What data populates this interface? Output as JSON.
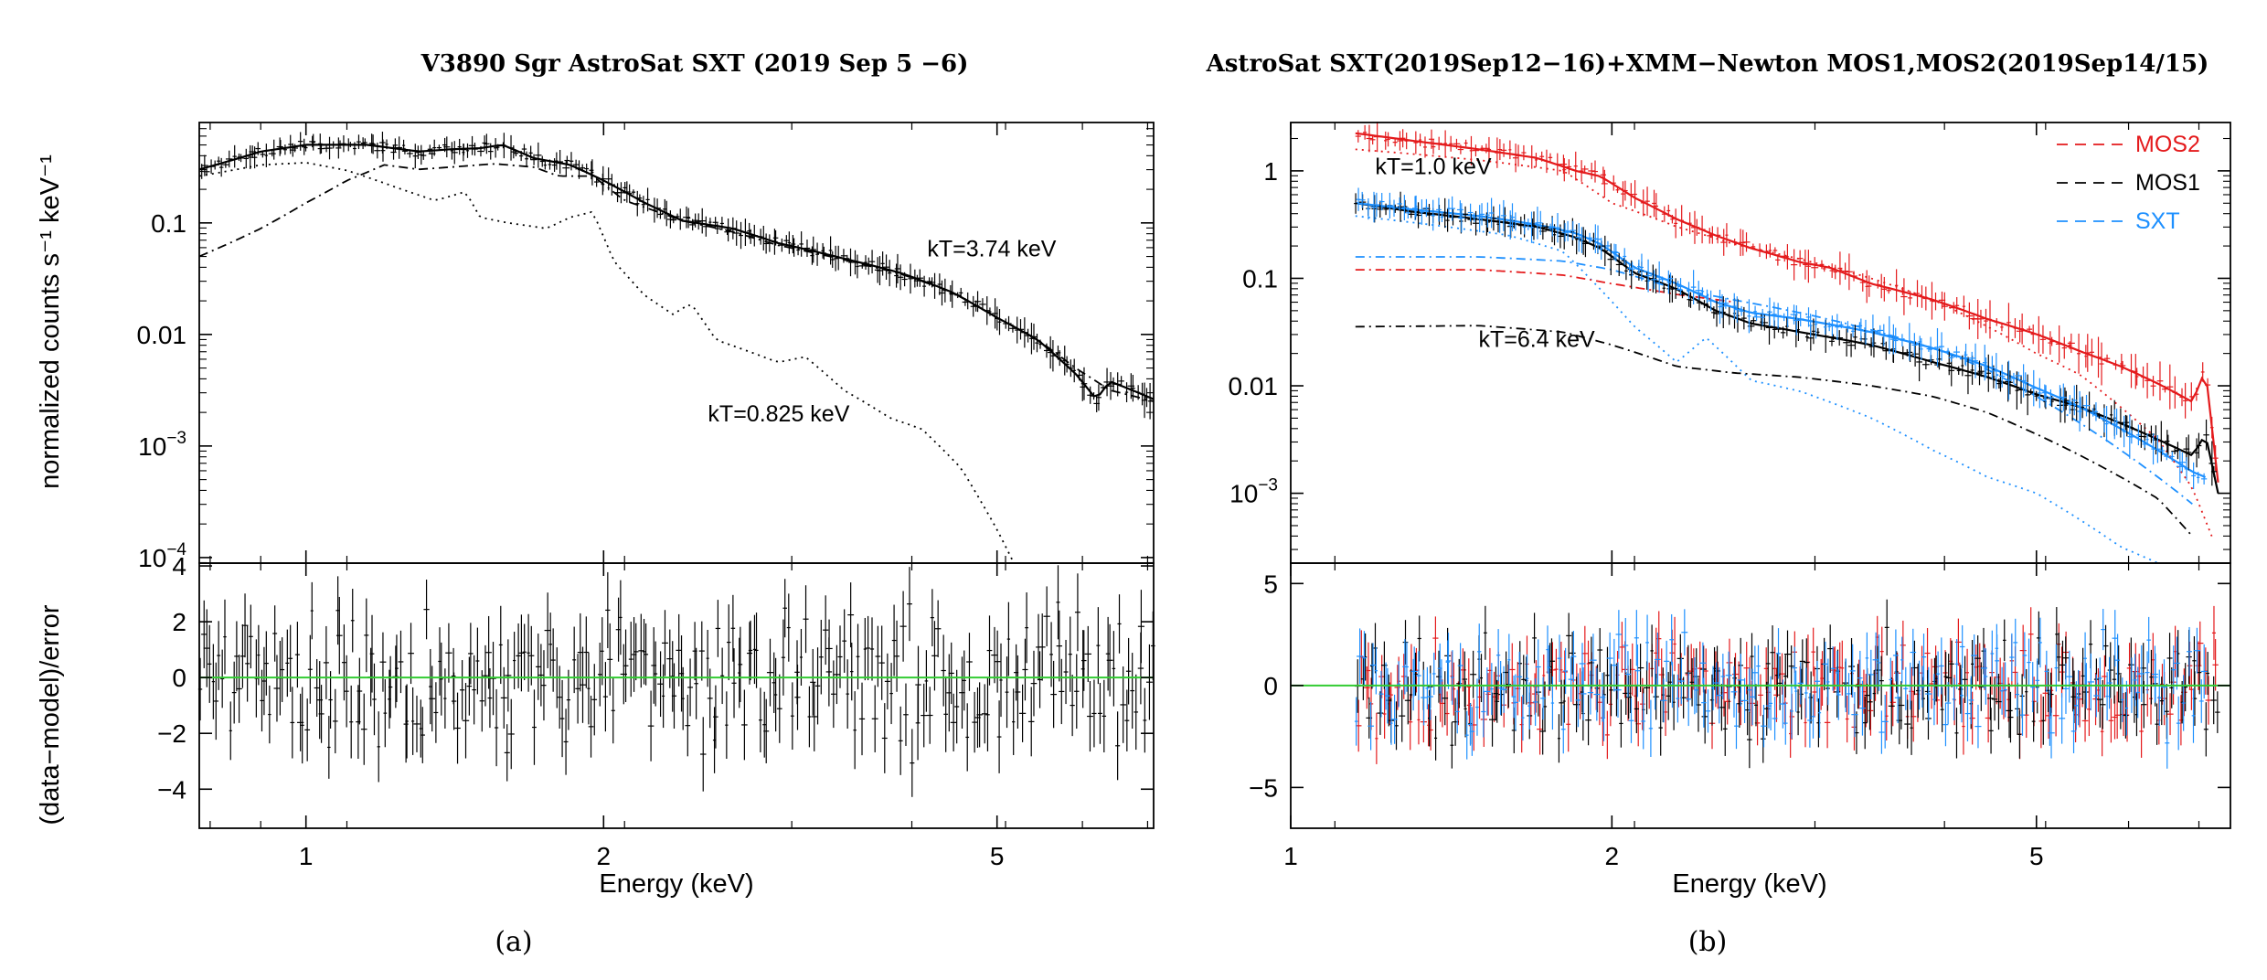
{
  "chart_data": [
    {
      "type": "line",
      "title": "V3890 Sgr   AstroSat SXT (2019 Sep 5 −6)",
      "caption": "(a)",
      "xlabel": "Energy (keV)",
      "ylabel_top": "normalized counts s⁻¹ keV⁻¹",
      "ylabel_bottom": "(data−model)/error",
      "x_scale": "log",
      "xlim": [
        0.78,
        7.2
      ],
      "x_ticks": [
        {
          "v": 1,
          "label": "1"
        },
        {
          "v": 2,
          "label": "2"
        },
        {
          "v": 5,
          "label": "5"
        }
      ],
      "top_ylim_log10": [
        -4.05,
        -0.1
      ],
      "top_ticks": [
        {
          "v": -1,
          "label": "0.1",
          "sup": ""
        },
        {
          "v": -2,
          "label": "0.01",
          "sup": ""
        },
        {
          "v": -3,
          "label": "10",
          "sup": "−3"
        },
        {
          "v": -4,
          "label": "10",
          "sup": "−4"
        }
      ],
      "bottom_ylim": [
        -5.4,
        4.1
      ],
      "bottom_ticks": [
        {
          "v": 4,
          "label": "4"
        },
        {
          "v": 2,
          "label": "2"
        },
        {
          "v": 0,
          "label": "0"
        },
        {
          "v": -2,
          "label": "−2"
        },
        {
          "v": -4,
          "label": "−4"
        }
      ],
      "annotations": [
        {
          "text": "kT=3.74 keV",
          "x": 4.25,
          "y_log10": -1.3
        },
        {
          "text": "kT=0.825 keV",
          "x": 2.55,
          "y_log10": -2.78
        }
      ],
      "series": [
        {
          "name": "data+model",
          "style": "solid",
          "color": "#000000",
          "x": [
            0.78,
            0.9,
            1.0,
            1.15,
            1.3,
            1.4,
            1.5,
            1.58,
            1.7,
            1.85,
            2.0,
            2.2,
            2.4,
            2.7,
            3.0,
            3.5,
            4.0,
            4.5,
            5.0,
            5.5,
            6.0,
            6.3,
            6.5,
            7.2
          ],
          "y_log10": [
            -0.52,
            -0.36,
            -0.3,
            -0.3,
            -0.36,
            -0.34,
            -0.33,
            -0.3,
            -0.42,
            -0.48,
            -0.62,
            -0.82,
            -0.98,
            -1.05,
            -1.18,
            -1.32,
            -1.45,
            -1.62,
            -1.85,
            -2.05,
            -2.35,
            -2.58,
            -2.42,
            -2.58
          ]
        },
        {
          "name": "kT=0.825 keV component",
          "style": "dotted",
          "color": "#000000",
          "x": [
            0.78,
            0.9,
            1.0,
            1.1,
            1.25,
            1.35,
            1.45,
            1.5,
            1.6,
            1.75,
            1.85,
            1.95,
            2.05,
            2.2,
            2.35,
            2.45,
            2.6,
            2.8,
            3.0,
            3.2,
            3.5,
            3.9,
            4.2,
            4.6,
            5.0,
            5.2
          ],
          "y_log10": [
            -0.58,
            -0.48,
            -0.46,
            -0.53,
            -0.7,
            -0.8,
            -0.72,
            -0.95,
            -1.0,
            -1.05,
            -0.95,
            -0.9,
            -1.35,
            -1.65,
            -1.82,
            -1.72,
            -2.05,
            -2.15,
            -2.25,
            -2.2,
            -2.5,
            -2.75,
            -2.85,
            -3.2,
            -3.75,
            -4.05
          ]
        },
        {
          "name": "kT=3.74 keV component",
          "style": "dashdot",
          "color": "#000000",
          "x": [
            0.78,
            0.9,
            1.0,
            1.1,
            1.2,
            1.3,
            1.4,
            1.55,
            1.7,
            1.8,
            1.95,
            2.1,
            2.4,
            2.7,
            3.0,
            3.5,
            4.0,
            4.5,
            5.0,
            5.5,
            6.0,
            6.5,
            7.2
          ],
          "y_log10": [
            -1.3,
            -1.05,
            -0.82,
            -0.62,
            -0.48,
            -0.52,
            -0.5,
            -0.47,
            -0.5,
            -0.58,
            -0.58,
            -0.8,
            -0.98,
            -1.08,
            -1.2,
            -1.33,
            -1.46,
            -1.62,
            -1.85,
            -2.05,
            -2.3,
            -2.5,
            -2.6
          ]
        }
      ]
    },
    {
      "type": "line",
      "title": "AstroSat SXT(2019Sep12−16)+XMM−Newton MOS1,MOS2(2019Sep14/15)",
      "caption": "(b)",
      "xlabel": "Energy (keV)",
      "x_scale": "log",
      "xlim": [
        1.0,
        7.6
      ],
      "x_ticks": [
        {
          "v": 1,
          "label": "1"
        },
        {
          "v": 2,
          "label": "2"
        },
        {
          "v": 5,
          "label": "5"
        }
      ],
      "top_ylim_log10": [
        -3.65,
        0.45
      ],
      "top_ticks": [
        {
          "v": 0,
          "label": "1",
          "sup": ""
        },
        {
          "v": -1,
          "label": "0.1",
          "sup": ""
        },
        {
          "v": -2,
          "label": "0.01",
          "sup": ""
        },
        {
          "v": -3,
          "label": "10",
          "sup": "−3"
        }
      ],
      "bottom_ylim": [
        -7.0,
        6.0
      ],
      "bottom_ticks": [
        {
          "v": 5,
          "label": "5"
        },
        {
          "v": 0,
          "label": "0"
        },
        {
          "v": -5,
          "label": "−5"
        }
      ],
      "legend": {
        "position": "top-right",
        "entries": [
          {
            "label": "MOS2",
            "color": "#e41a1c"
          },
          {
            "label": "MOS1",
            "color": "#000000"
          },
          {
            "label": "SXT",
            "color": "#1e90ff"
          }
        ]
      },
      "annotations": [
        {
          "text": "kT=1.0 keV",
          "x": 1.2,
          "y_log10": -0.03
        },
        {
          "text": "kT=6.4 keV",
          "x": 1.5,
          "y_log10": -1.64
        }
      ],
      "series": [
        {
          "name": "MOS2",
          "style": "solid",
          "color": "#e41a1c",
          "x": [
            1.15,
            1.3,
            1.5,
            1.7,
            1.85,
            1.95,
            2.1,
            2.3,
            2.5,
            2.7,
            3.0,
            3.2,
            3.5,
            4.0,
            4.5,
            5.0,
            5.5,
            6.0,
            6.5,
            7.0,
            7.2,
            7.4
          ],
          "y_log10": [
            0.35,
            0.28,
            0.2,
            0.12,
            0.0,
            -0.05,
            -0.25,
            -0.45,
            -0.6,
            -0.72,
            -0.85,
            -0.9,
            -1.05,
            -1.2,
            -1.38,
            -1.52,
            -1.68,
            -1.82,
            -1.98,
            -2.15,
            -1.85,
            -2.9
          ]
        },
        {
          "name": "MOS1",
          "style": "solid",
          "color": "#000000",
          "x": [
            1.15,
            1.3,
            1.5,
            1.7,
            1.85,
            1.95,
            2.1,
            2.3,
            2.5,
            2.7,
            3.0,
            3.5,
            4.0,
            4.5,
            5.0,
            5.5,
            6.0,
            6.5,
            7.0,
            7.2,
            7.4
          ],
          "y_log10": [
            -0.3,
            -0.38,
            -0.45,
            -0.52,
            -0.62,
            -0.72,
            -0.95,
            -1.1,
            -1.3,
            -1.42,
            -1.5,
            -1.62,
            -1.78,
            -1.92,
            -2.08,
            -2.2,
            -2.35,
            -2.5,
            -2.65,
            -2.45,
            -3.0
          ]
        },
        {
          "name": "SXT",
          "style": "solid",
          "color": "#1e90ff",
          "x": [
            1.15,
            1.3,
            1.5,
            1.7,
            1.85,
            1.95,
            2.1,
            2.3,
            2.5,
            2.7,
            3.0,
            3.5,
            4.0,
            4.5,
            5.0,
            5.5,
            6.0,
            6.5,
            7.0,
            7.2
          ],
          "y_log10": [
            -0.3,
            -0.36,
            -0.42,
            -0.5,
            -0.58,
            -0.68,
            -0.9,
            -1.05,
            -1.22,
            -1.32,
            -1.38,
            -1.5,
            -1.65,
            -1.82,
            -2.02,
            -2.2,
            -2.4,
            -2.6,
            -2.8,
            -2.85
          ]
        },
        {
          "name": "MOS2 soft component",
          "style": "dotted",
          "color": "#e41a1c",
          "x": [
            1.15,
            1.5,
            1.8,
            2.0,
            2.3,
            2.6,
            3.0,
            3.5,
            4.0,
            4.5,
            5.0,
            5.5,
            6.0,
            6.5,
            7.0,
            7.3
          ],
          "y_log10": [
            0.2,
            0.1,
            0.0,
            -0.3,
            -0.52,
            -0.68,
            -0.82,
            -1.0,
            -1.2,
            -1.45,
            -1.7,
            -1.9,
            -2.2,
            -2.5,
            -2.95,
            -3.4
          ]
        },
        {
          "name": "SXT soft component",
          "style": "dotted",
          "color": "#1e90ff",
          "x": [
            1.15,
            1.4,
            1.6,
            1.8,
            1.95,
            2.1,
            2.3,
            2.45,
            2.7,
            3.0,
            3.5,
            4.0,
            4.5,
            5.0,
            5.5,
            6.0,
            6.5
          ],
          "y_log10": [
            -0.42,
            -0.52,
            -0.6,
            -0.75,
            -1.1,
            -1.45,
            -1.78,
            -1.55,
            -1.95,
            -2.05,
            -2.3,
            -2.6,
            -2.85,
            -3.0,
            -3.25,
            -3.5,
            -3.65
          ]
        },
        {
          "name": "MOS1 hard component",
          "style": "dashdot",
          "color": "#000000",
          "x": [
            1.15,
            1.5,
            1.8,
            2.0,
            2.3,
            2.6,
            3.0,
            3.5,
            4.0,
            4.5,
            5.0,
            5.5,
            6.0,
            6.5,
            7.0
          ],
          "y_log10": [
            -1.45,
            -1.44,
            -1.5,
            -1.62,
            -1.82,
            -1.88,
            -1.92,
            -2.0,
            -2.1,
            -2.25,
            -2.45,
            -2.65,
            -2.85,
            -3.05,
            -3.4
          ]
        },
        {
          "name": "SXT hard component",
          "style": "dashdot",
          "color": "#1e90ff",
          "x": [
            1.15,
            1.5,
            1.8,
            2.0,
            2.3,
            2.6,
            3.0,
            3.5,
            4.0,
            4.5,
            5.0,
            5.5,
            6.0,
            6.5,
            7.0
          ],
          "y_log10": [
            -0.8,
            -0.8,
            -0.84,
            -0.92,
            -1.1,
            -1.2,
            -1.32,
            -1.48,
            -1.65,
            -1.85,
            -2.1,
            -2.35,
            -2.6,
            -2.85,
            -3.1
          ]
        },
        {
          "name": "MOS2 hard component",
          "style": "dashdot",
          "color": "#e41a1c",
          "x": [
            1.15,
            1.5,
            1.8,
            2.0,
            2.3,
            2.6
          ],
          "y_log10": [
            -0.92,
            -0.92,
            -0.97,
            -1.05,
            -1.15,
            -1.22
          ]
        }
      ]
    }
  ]
}
